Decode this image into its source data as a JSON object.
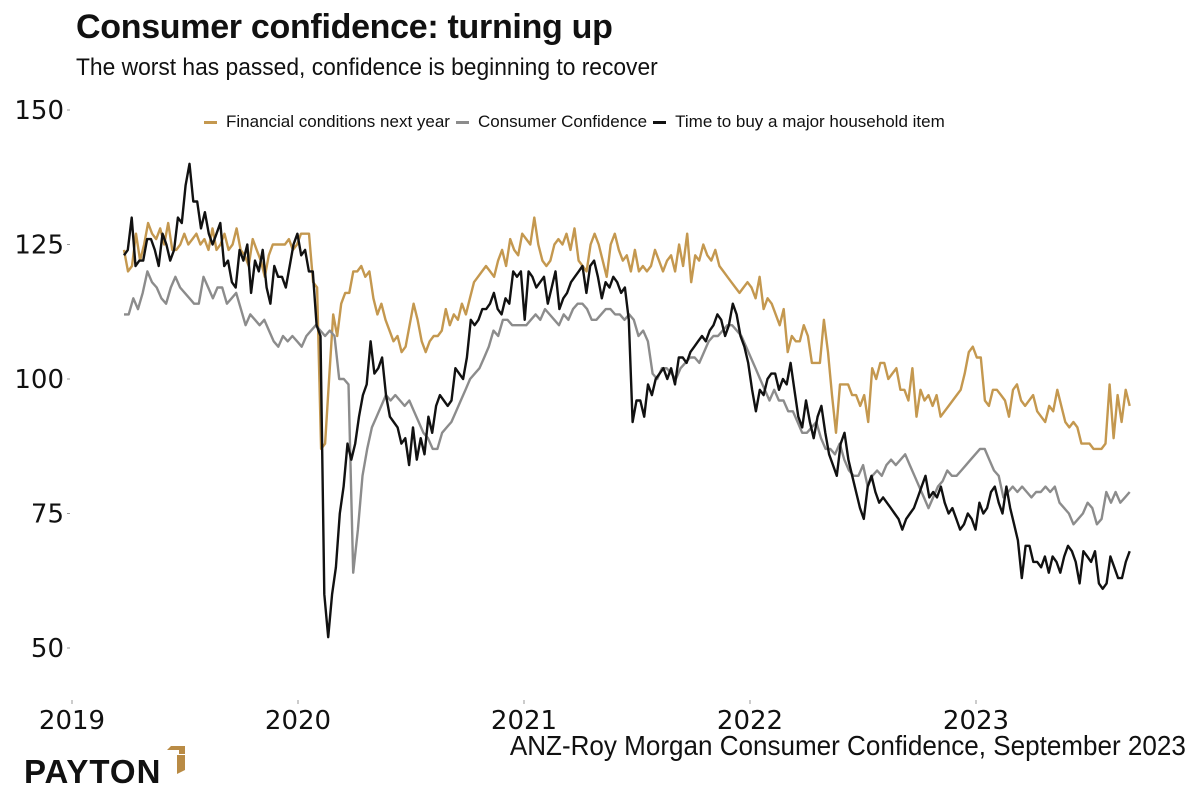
{
  "header": {
    "title": "Consumer confidence: turning up",
    "subtitle": "The worst has passed, confidence is beginning to recover"
  },
  "legend": [
    {
      "label": "Financial conditions next year",
      "color": "#C4984F"
    },
    {
      "label": "Consumer Confidence",
      "color": "#8C8C8C"
    },
    {
      "label": "Time to buy a major household item",
      "color": "#111111"
    }
  ],
  "footer": {
    "source": "ANZ-Roy Morgan Consumer Confidence, September 2023",
    "logo_text": "PAYTON",
    "logo_accent": "#B98B45"
  },
  "chart_data": {
    "type": "line",
    "title": "Consumer confidence: turning up",
    "subtitle": "The worst has passed, confidence is beginning to recover",
    "xlabel": "",
    "ylabel": "",
    "ylim": [
      50,
      150
    ],
    "yticks": [
      50,
      75,
      100,
      125,
      150
    ],
    "xlim": [
      2019.0,
      2023.75
    ],
    "xticks": [
      2019,
      2020,
      2021,
      2022,
      2023
    ],
    "xtick_labels": [
      "2019",
      "2020",
      "2021",
      "2022",
      "2023"
    ],
    "grid": false,
    "legend_position": "top",
    "x_start": 2019.23,
    "x_step_weeks": 1,
    "series": [
      {
        "name": "Financial conditions next year",
        "color": "#C4984F",
        "values": [
          124,
          120,
          121,
          127,
          122,
          125,
          129,
          127,
          126,
          128,
          125,
          129,
          124,
          124,
          125,
          127,
          125,
          126,
          127,
          125,
          126,
          124,
          128,
          124,
          125,
          127,
          124,
          125,
          128,
          124,
          123,
          121,
          126,
          124,
          122,
          119,
          123,
          125,
          125,
          125,
          125,
          126,
          124,
          125,
          127,
          127,
          127,
          118,
          117,
          87,
          88,
          100,
          112,
          108,
          114,
          116,
          116,
          120,
          120,
          121,
          119,
          120,
          115,
          112,
          114,
          111,
          109,
          107,
          108,
          105,
          106,
          110,
          114,
          111,
          107,
          105,
          107,
          108,
          108,
          109,
          113,
          110,
          112,
          111,
          114,
          112,
          115,
          118,
          119,
          120,
          121,
          120,
          119,
          122,
          124,
          121,
          126,
          124,
          123,
          127,
          126,
          125,
          130,
          125,
          122,
          121,
          122,
          125,
          126,
          125,
          127,
          124,
          128,
          122,
          121,
          120,
          125,
          127,
          125,
          122,
          119,
          125,
          127,
          124,
          122,
          123,
          120,
          124,
          120,
          121,
          120,
          121,
          124,
          122,
          120,
          122,
          123,
          120,
          125,
          121,
          127,
          118,
          123,
          122,
          125,
          123,
          122,
          124,
          121,
          120,
          119,
          118,
          117,
          116,
          117,
          118,
          117,
          115,
          119,
          113,
          115,
          114,
          112,
          110,
          113,
          105,
          108,
          107,
          107,
          110,
          108,
          103,
          103,
          103,
          111,
          105,
          97,
          90,
          99,
          99,
          99,
          97,
          97,
          95,
          97,
          92,
          102,
          100,
          103,
          103,
          100,
          101,
          102,
          98,
          98,
          96,
          102,
          93,
          98,
          96,
          97,
          95,
          97,
          93,
          94,
          95,
          96,
          97,
          98,
          101,
          105,
          106,
          104,
          104,
          96,
          95,
          98,
          98,
          97,
          96,
          93,
          98,
          99,
          96,
          95,
          96,
          97,
          94,
          93,
          92,
          95,
          94,
          98,
          95,
          92,
          91,
          92,
          91,
          88,
          88,
          88,
          87,
          87,
          87,
          88,
          99,
          89,
          97,
          92,
          98,
          95
        ]
      },
      {
        "name": "Consumer Confidence",
        "color": "#8C8C8C",
        "values": [
          112,
          112,
          115,
          113,
          116,
          120,
          118,
          117,
          115,
          114,
          117,
          119,
          117,
          116,
          115,
          114,
          114,
          119,
          117,
          115,
          117,
          117,
          114,
          115,
          116,
          113,
          110,
          112,
          111,
          110,
          111,
          109,
          107,
          106,
          108,
          107,
          108,
          107,
          106,
          108,
          109,
          110,
          109,
          108,
          109,
          108,
          100,
          100,
          99,
          64,
          72,
          82,
          87,
          91,
          93,
          95,
          97,
          96,
          97,
          96,
          95,
          96,
          94,
          92,
          90,
          89,
          87,
          87,
          90,
          91,
          92,
          94,
          96,
          98,
          100,
          101,
          102,
          104,
          106,
          109,
          108,
          111,
          111,
          110,
          110,
          110,
          110,
          111,
          112,
          111,
          113,
          112,
          111,
          110,
          112,
          111,
          113,
          114,
          114,
          113,
          111,
          111,
          112,
          113,
          113,
          112,
          112,
          111,
          112,
          111,
          108,
          109,
          107,
          101,
          100,
          102,
          102,
          101,
          100,
          102,
          103,
          104,
          104,
          103,
          105,
          107,
          108,
          108,
          109,
          110,
          110,
          109,
          108,
          106,
          104,
          102,
          100,
          98,
          96,
          98,
          96,
          96,
          94,
          94,
          92,
          90,
          90,
          91,
          92,
          89,
          87,
          87,
          86,
          88,
          85,
          83,
          82,
          82,
          84,
          80,
          82,
          83,
          82,
          84,
          85,
          84,
          85,
          86,
          84,
          82,
          80,
          78,
          76,
          78,
          80,
          81,
          83,
          82,
          82,
          83,
          84,
          85,
          86,
          87,
          87,
          85,
          83,
          82,
          78,
          79,
          80,
          79,
          80,
          79,
          78,
          79,
          79,
          80,
          79,
          80,
          77,
          76,
          75,
          73,
          74,
          75,
          77,
          76,
          73,
          74,
          79,
          77,
          79,
          77,
          78,
          79
        ]
      },
      {
        "name": "Time to buy a major household item",
        "color": "#111111",
        "values": [
          123,
          124,
          130,
          121,
          122,
          122,
          126,
          126,
          124,
          121,
          127,
          125,
          122,
          124,
          130,
          129,
          136,
          140,
          133,
          133,
          128,
          131,
          127,
          125,
          127,
          129,
          121,
          122,
          118,
          117,
          124,
          122,
          125,
          116,
          122,
          120,
          124,
          117,
          114,
          121,
          119,
          119,
          117,
          121,
          125,
          127,
          123,
          124,
          120,
          120,
          110,
          108,
          60,
          52,
          60,
          65,
          75,
          80,
          88,
          85,
          88,
          93,
          97,
          99,
          107,
          101,
          102,
          104,
          97,
          93,
          92,
          91,
          88,
          89,
          84,
          91,
          85,
          89,
          86,
          93,
          90,
          95,
          97,
          96,
          95,
          96,
          102,
          101,
          100,
          104,
          111,
          110,
          111,
          113,
          113,
          114,
          116,
          113,
          112,
          115,
          114,
          120,
          119,
          120,
          111,
          120,
          119,
          117,
          118,
          119,
          114,
          117,
          120,
          113,
          115,
          116,
          118,
          119,
          120,
          121,
          116,
          121,
          122,
          119,
          115,
          118,
          117,
          119,
          118,
          116,
          117,
          111,
          92,
          96,
          96,
          93,
          99,
          97,
          100,
          101,
          102,
          100,
          102,
          99,
          104,
          104,
          103,
          105,
          106,
          107,
          108,
          107,
          109,
          110,
          112,
          111,
          108,
          110,
          114,
          112,
          108,
          106,
          103,
          98,
          94,
          98,
          97,
          100,
          101,
          101,
          98,
          100,
          99,
          103,
          98,
          93,
          91,
          96,
          92,
          89,
          93,
          95,
          90,
          86,
          84,
          82,
          88,
          90,
          85,
          82,
          79,
          76,
          74,
          80,
          82,
          79,
          77,
          78,
          77,
          76,
          75,
          74,
          72,
          74,
          75,
          76,
          78,
          80,
          82,
          78,
          79,
          78,
          80,
          77,
          75,
          76,
          74,
          72,
          73,
          75,
          74,
          72,
          77,
          75,
          76,
          79,
          80,
          77,
          75,
          80,
          76,
          73,
          70,
          63,
          69,
          69,
          66,
          66,
          65,
          67,
          64,
          67,
          66,
          64,
          67,
          69,
          68,
          66,
          62,
          68,
          67,
          66,
          68,
          62,
          61,
          62,
          67,
          65,
          63,
          63,
          66,
          68
        ]
      }
    ]
  }
}
